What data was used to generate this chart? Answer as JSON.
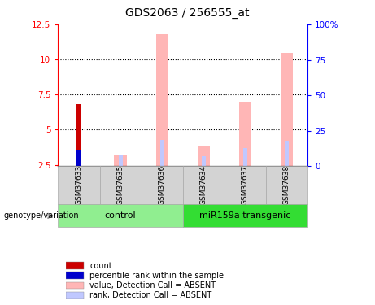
{
  "title": "GDS2063 / 256555_at",
  "samples": [
    "GSM37633",
    "GSM37635",
    "GSM37636",
    "GSM37634",
    "GSM37637",
    "GSM37638"
  ],
  "baseline": 2.4,
  "pink_values": [
    null,
    3.2,
    11.8,
    3.8,
    7.0,
    10.5
  ],
  "lightblue_values": [
    null,
    3.15,
    4.3,
    3.1,
    3.7,
    4.2
  ],
  "red_value": [
    6.8,
    null,
    null,
    null,
    null,
    null
  ],
  "blue_value": [
    3.6,
    null,
    null,
    null,
    null,
    null
  ],
  "ylim_left": [
    2.4,
    12.5
  ],
  "yticks_left": [
    2.5,
    5.0,
    7.5,
    10.0,
    12.5
  ],
  "ytick_labels_left": [
    "2.5",
    "5",
    "7.5",
    "10",
    "12.5"
  ],
  "ytick_labels_right": [
    "0",
    "25",
    "50",
    "75",
    "100%"
  ],
  "hlines": [
    5.0,
    7.5,
    10.0
  ],
  "color_red": "#cc0000",
  "color_blue": "#0000cc",
  "color_pink": "#ffb6b6",
  "color_lightblue": "#c0c8ff",
  "color_control": "#90ee90",
  "color_transgenic": "#33dd33",
  "legend_items": [
    {
      "color": "#cc0000",
      "label": "count"
    },
    {
      "color": "#0000cc",
      "label": "percentile rank within the sample"
    },
    {
      "color": "#ffb6b6",
      "label": "value, Detection Call = ABSENT"
    },
    {
      "color": "#c0c8ff",
      "label": "rank, Detection Call = ABSENT"
    }
  ]
}
